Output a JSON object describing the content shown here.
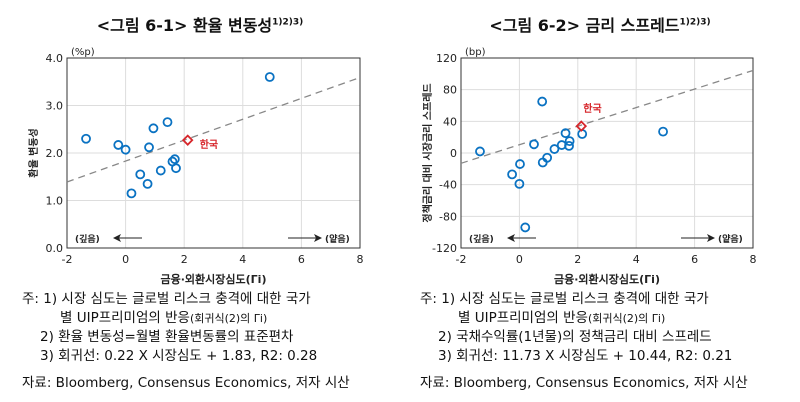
{
  "chart_data": [
    {
      "type": "scatter",
      "title": "<그림 6-1> 환율 변동성",
      "title_sup": "1)2)3)",
      "unit": "(%p)",
      "ylabel": "환율 변동성",
      "xlabel": "금융·외환시장심도(Γi)",
      "xlim": [
        -2,
        8
      ],
      "ylim": [
        0,
        4
      ],
      "xticks": [
        -2,
        0,
        2,
        4,
        6,
        8
      ],
      "yticks": [
        0,
        1,
        2,
        3,
        4
      ],
      "ytick_labels": [
        "0.0",
        "1.0",
        "2.0",
        "3.0",
        "4.0"
      ],
      "grid": true,
      "points": [
        [
          -1.35,
          2.3
        ],
        [
          -0.25,
          2.17
        ],
        [
          0,
          2.07
        ],
        [
          0.2,
          1.15
        ],
        [
          0.5,
          1.55
        ],
        [
          0.75,
          1.35
        ],
        [
          0.8,
          2.12
        ],
        [
          0.95,
          2.52
        ],
        [
          1.2,
          1.63
        ],
        [
          1.43,
          2.65
        ],
        [
          1.6,
          1.82
        ],
        [
          1.68,
          1.87
        ],
        [
          1.72,
          1.68
        ],
        [
          4.92,
          3.6
        ]
      ],
      "highlight": {
        "label": "한국",
        "x": 2.12,
        "y": 2.27,
        "color": "#d7262b"
      },
      "fit": {
        "slope": 0.22,
        "intercept": 1.83
      },
      "annotations": {
        "left": "(깊음)",
        "right": "(얕음)"
      },
      "marker_color": "#0a72c2"
    },
    {
      "type": "scatter",
      "title": "<그림 6-2> 금리 스프레드",
      "title_sup": "1)2)3)",
      "unit": "(bp)",
      "ylabel": "정책금리 대비 시장금리 스프레드",
      "xlabel": "금융·외환시장심도(Γi)",
      "xlim": [
        -2,
        8
      ],
      "ylim": [
        -120,
        120
      ],
      "xticks": [
        -2,
        0,
        2,
        4,
        6,
        8
      ],
      "yticks": [
        -120,
        -80,
        -40,
        0,
        40,
        80,
        120
      ],
      "ytick_labels": [
        "-120",
        "-80",
        "-40",
        "0",
        "40",
        "80",
        "120"
      ],
      "grid": true,
      "points": [
        [
          -1.35,
          2
        ],
        [
          -0.25,
          -27
        ],
        [
          0,
          -39
        ],
        [
          0.02,
          -14
        ],
        [
          0.2,
          -94
        ],
        [
          0.5,
          11
        ],
        [
          0.78,
          65
        ],
        [
          0.8,
          -12
        ],
        [
          0.95,
          -6
        ],
        [
          1.2,
          5
        ],
        [
          1.45,
          10
        ],
        [
          1.58,
          25
        ],
        [
          1.72,
          15
        ],
        [
          1.7,
          9
        ],
        [
          2.15,
          24
        ],
        [
          4.92,
          27
        ]
      ],
      "highlight": {
        "label": "한국",
        "x": 2.12,
        "y": 34,
        "color": "#d7262b"
      },
      "fit": {
        "slope": 11.73,
        "intercept": 10.44
      },
      "annotations": {
        "left": "(깊음)",
        "right": "(얕음)"
      },
      "marker_color": "#0a72c2"
    }
  ],
  "notes": [
    {
      "n1a": "주: 1) 시장 심도는 글로벌 리스크 충격에 대한 국가",
      "n1b": "별 UIP프리미엄의 반응",
      "n1c": "(회귀식(2)의 Γi)",
      "n2": "2) 환율 변동성=월별 환율변동률의 표준편차",
      "n3": "3) 회귀선: 0.22 X 시장심도 + 1.83,  R2: 0.28",
      "src": "자료: Bloomberg, Consensus Economics, 저자 시산"
    },
    {
      "n1a": "주: 1) 시장 심도는 글로벌 리스크 충격에 대한 국가",
      "n1b": "별 UIP프리미엄의 반응",
      "n1c": "(회귀식(2)의 Γi)",
      "n2": "2) 국채수익률(1년물)의 정책금리 대비 스프레드",
      "n3": "3) 회귀선: 11.73 X 시장심도 + 10.44,  R2: 0.21",
      "src": "자료: Bloomberg, Consensus Economics, 저자 시산"
    }
  ]
}
